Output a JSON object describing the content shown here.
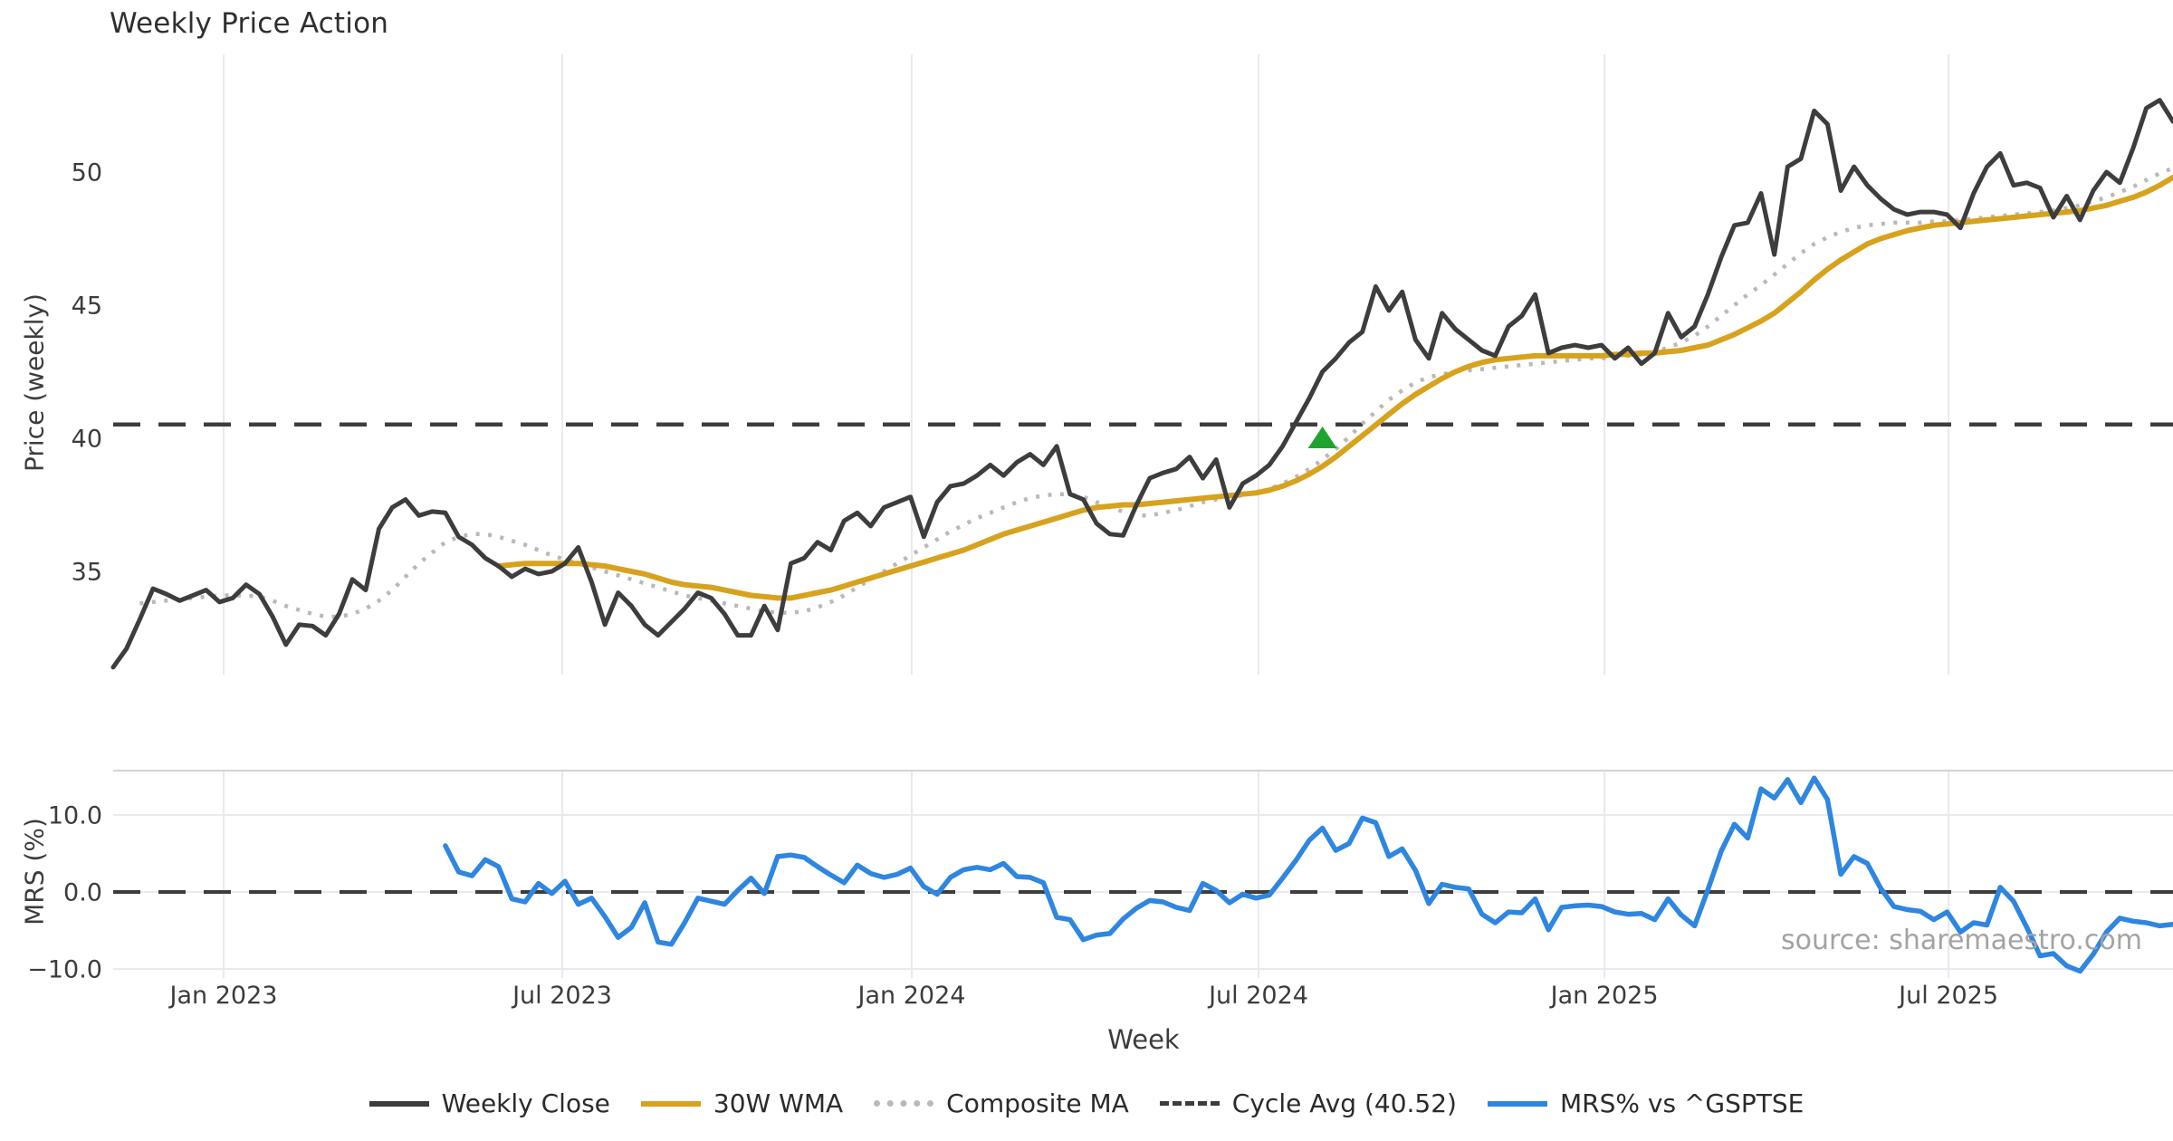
{
  "title": "Weekly Price Action",
  "xlabel": "Week",
  "source": "source: sharemaestro.com",
  "colors": {
    "weekly_close": "#3d3d3d",
    "wma30": "#d7a21d",
    "composite": "#b9b9b9",
    "cycle_avg": "#3d3d3d",
    "mrs": "#2e86e0",
    "marker_green": "#1fa32f",
    "grid": "#e9e9f1",
    "spine": "#d4d4d4"
  },
  "legend": [
    {
      "label": "Weekly Close",
      "style": "solid",
      "color": "#3d3d3d"
    },
    {
      "label": "30W WMA",
      "style": "solid",
      "color": "#d7a21d"
    },
    {
      "label": "Composite MA",
      "style": "dotted",
      "color": "#b9b9b9"
    },
    {
      "label": "Cycle Avg (40.52)",
      "style": "dashed",
      "color": "#3d3d3d"
    },
    {
      "label": "MRS% vs ^GSPTSE",
      "style": "solid",
      "color": "#2e86e0"
    }
  ],
  "chart_data": {
    "type": "line",
    "x_mode": "weekly",
    "weeks_total": 156,
    "xticks": [
      {
        "label": "Jan 2023",
        "week": 8.31
      },
      {
        "label": "Jul 2023",
        "week": 33.79
      },
      {
        "label": "Jan 2024",
        "week": 60.09
      },
      {
        "label": "Jul 2024",
        "week": 86.19
      },
      {
        "label": "Jan 2025",
        "week": 112.22
      },
      {
        "label": "Jul 2025",
        "week": 138.11
      }
    ],
    "price_panel": {
      "ylabel": "Price (weekly)",
      "ylim": [
        31.1,
        54.4
      ],
      "yticks": [
        {
          "label": "35",
          "value": 35
        },
        {
          "label": "40",
          "value": 40
        },
        {
          "label": "45",
          "value": 45
        },
        {
          "label": "50",
          "value": 50
        }
      ],
      "cycle_avg": 40.52,
      "signal_marker": {
        "week": 91,
        "price": 40.0,
        "shape": "triangle-up",
        "color": "#1fa32f"
      }
    },
    "mrs_panel": {
      "ylabel": "MRS (%)",
      "ylim": [
        -11.2,
        15.8
      ],
      "yticks": [
        {
          "label": "10.0",
          "value": 10
        },
        {
          "label": "0.0",
          "value": 0
        },
        {
          "label": "−10.0",
          "value": -10
        }
      ],
      "zero_line": 0
    },
    "series": [
      {
        "name": "Weekly Close",
        "start_week": 0,
        "values": [
          31.4,
          32.1,
          33.2,
          34.35,
          34.15,
          33.9,
          34.1,
          34.3,
          33.85,
          34.0,
          34.5,
          34.15,
          33.3,
          32.25,
          33.0,
          32.95,
          32.6,
          33.4,
          34.7,
          34.3,
          36.6,
          37.4,
          37.7,
          37.1,
          37.25,
          37.2,
          36.3,
          36.0,
          35.5,
          35.2,
          34.8,
          35.1,
          34.9,
          35.0,
          35.3,
          35.9,
          34.6,
          33.0,
          34.2,
          33.7,
          33.0,
          32.6,
          33.1,
          33.6,
          34.2,
          34.0,
          33.4,
          32.6,
          32.6,
          33.7,
          32.8,
          35.3,
          35.5,
          36.1,
          35.8,
          36.9,
          37.2,
          36.7,
          37.4,
          37.6,
          37.8,
          36.3,
          37.6,
          38.2,
          38.3,
          38.6,
          39.0,
          38.6,
          39.1,
          39.4,
          39.0,
          39.7,
          37.9,
          37.7,
          36.8,
          36.4,
          36.35,
          37.5,
          38.5,
          38.7,
          38.85,
          39.3,
          38.5,
          39.2,
          37.4,
          38.3,
          38.6,
          39.0,
          39.7,
          40.6,
          41.5,
          42.5,
          43.0,
          43.6,
          44.0,
          45.7,
          44.8,
          45.5,
          43.7,
          43.0,
          44.7,
          44.1,
          43.7,
          43.3,
          43.1,
          44.2,
          44.6,
          45.4,
          43.2,
          43.4,
          43.5,
          43.4,
          43.5,
          43.0,
          43.4,
          42.8,
          43.2,
          44.7,
          43.8,
          44.2,
          45.4,
          46.8,
          48.0,
          48.1,
          49.2,
          46.9,
          50.2,
          50.5,
          52.3,
          51.8,
          49.3,
          50.2,
          49.5,
          49.0,
          48.6,
          48.4,
          48.5,
          48.5,
          48.4,
          47.9,
          49.2,
          50.2,
          50.7,
          49.5,
          49.6,
          49.4,
          48.3,
          49.1,
          48.2,
          49.3,
          50.0,
          49.6,
          50.9,
          52.4,
          52.7,
          51.9
        ]
      },
      {
        "name": "30W WMA",
        "start_week": 29,
        "values": [
          35.2,
          35.25,
          35.3,
          35.3,
          35.3,
          35.3,
          35.3,
          35.25,
          35.2,
          35.1,
          35.0,
          34.9,
          34.75,
          34.6,
          34.5,
          34.45,
          34.4,
          34.3,
          34.2,
          34.1,
          34.05,
          34.0,
          34.0,
          34.1,
          34.2,
          34.3,
          34.45,
          34.6,
          34.75,
          34.9,
          35.05,
          35.2,
          35.35,
          35.5,
          35.65,
          35.8,
          36.0,
          36.2,
          36.4,
          36.55,
          36.7,
          36.85,
          37.0,
          37.15,
          37.3,
          37.4,
          37.45,
          37.5,
          37.5,
          37.55,
          37.6,
          37.65,
          37.7,
          37.75,
          37.8,
          37.85,
          37.9,
          37.95,
          38.05,
          38.2,
          38.4,
          38.65,
          38.95,
          39.3,
          39.7,
          40.1,
          40.5,
          40.9,
          41.3,
          41.65,
          41.95,
          42.25,
          42.5,
          42.7,
          42.85,
          42.95,
          43.0,
          43.05,
          43.1,
          43.1,
          43.1,
          43.1,
          43.1,
          43.1,
          43.15,
          43.15,
          43.2,
          43.2,
          43.25,
          43.3,
          43.4,
          43.5,
          43.7,
          43.9,
          44.15,
          44.4,
          44.7,
          45.1,
          45.5,
          45.95,
          46.35,
          46.7,
          47.0,
          47.3,
          47.5,
          47.65,
          47.8,
          47.9,
          48.0,
          48.05,
          48.1,
          48.15,
          48.2,
          48.25,
          48.3,
          48.35,
          48.4,
          48.45,
          48.5,
          48.55,
          48.65,
          48.75,
          48.9,
          49.05,
          49.25,
          49.5,
          49.8
        ]
      },
      {
        "name": "Composite MA",
        "start_week": 2,
        "values": [
          33.8,
          33.85,
          33.9,
          33.95,
          34.0,
          34.05,
          34.1,
          34.1,
          34.1,
          34.05,
          33.9,
          33.7,
          33.55,
          33.4,
          33.3,
          33.3,
          33.4,
          33.6,
          33.9,
          34.3,
          34.8,
          35.3,
          35.7,
          36.1,
          36.3,
          36.4,
          36.4,
          36.3,
          36.15,
          36.0,
          35.8,
          35.6,
          35.45,
          35.3,
          35.15,
          35.0,
          34.85,
          34.7,
          34.55,
          34.4,
          34.25,
          34.1,
          34.0,
          33.9,
          33.8,
          33.7,
          33.6,
          33.5,
          33.45,
          33.45,
          33.5,
          33.65,
          33.85,
          34.1,
          34.4,
          34.7,
          35.0,
          35.3,
          35.6,
          35.9,
          36.2,
          36.5,
          36.75,
          37.0,
          37.2,
          37.4,
          37.6,
          37.75,
          37.85,
          37.9,
          37.9,
          37.8,
          37.6,
          37.4,
          37.25,
          37.1,
          37.1,
          37.2,
          37.3,
          37.45,
          37.6,
          37.7,
          37.8,
          37.85,
          37.95,
          38.1,
          38.3,
          38.55,
          38.85,
          39.2,
          39.6,
          40.05,
          40.55,
          41.0,
          41.45,
          41.8,
          42.1,
          42.3,
          42.4,
          42.5,
          42.55,
          42.6,
          42.65,
          42.7,
          42.75,
          42.8,
          42.85,
          42.9,
          42.95,
          43.0,
          43.0,
          43.05,
          43.1,
          43.15,
          43.25,
          43.4,
          43.6,
          43.85,
          44.2,
          44.6,
          45.0,
          45.4,
          45.75,
          46.15,
          46.55,
          46.95,
          47.3,
          47.55,
          47.75,
          47.9,
          48.0,
          48.05,
          48.1,
          48.1,
          48.1,
          48.15,
          48.15,
          48.2,
          48.25,
          48.3,
          48.35,
          48.4,
          48.45,
          48.5,
          48.55,
          48.65,
          48.75,
          48.9,
          49.05,
          49.25,
          49.45,
          49.7,
          49.95,
          50.15
        ]
      },
      {
        "name": "MRS% vs ^GSPTSE",
        "start_week": 25,
        "values": [
          6.0,
          2.6,
          2.1,
          4.2,
          3.3,
          -0.9,
          -1.3,
          1.1,
          -0.2,
          1.4,
          -1.6,
          -0.8,
          -3.2,
          -5.9,
          -4.6,
          -1.4,
          -6.5,
          -6.8,
          -4.0,
          -0.8,
          -1.2,
          -1.6,
          0.2,
          1.8,
          -0.2,
          4.6,
          4.8,
          4.5,
          3.3,
          2.2,
          1.2,
          3.5,
          2.4,
          1.9,
          2.3,
          3.1,
          0.7,
          -0.3,
          1.9,
          2.9,
          3.2,
          2.9,
          3.7,
          2.0,
          1.9,
          1.2,
          -3.3,
          -3.6,
          -6.2,
          -5.6,
          -5.4,
          -3.5,
          -2.1,
          -1.1,
          -1.3,
          -2.0,
          -2.4,
          1.1,
          0.2,
          -1.4,
          -0.3,
          -0.8,
          -0.4,
          1.8,
          4.1,
          6.7,
          8.3,
          5.4,
          6.3,
          9.6,
          9.0,
          4.6,
          5.6,
          2.8,
          -1.5,
          1.0,
          0.6,
          0.4,
          -2.9,
          -4.0,
          -2.6,
          -2.7,
          -0.9,
          -4.9,
          -2.0,
          -1.8,
          -1.7,
          -1.9,
          -2.6,
          -2.9,
          -2.8,
          -3.6,
          -0.9,
          -3.0,
          -4.4,
          0.3,
          5.3,
          8.8,
          7.0,
          13.4,
          12.2,
          14.6,
          11.6,
          14.8,
          12.0,
          2.3,
          4.6,
          3.7,
          0.5,
          -1.9,
          -2.3,
          -2.5,
          -3.6,
          -2.6,
          -5.2,
          -4.0,
          -4.3,
          0.6,
          -1.2,
          -4.6,
          -8.3,
          -8.0,
          -9.6,
          -10.3,
          -8.1,
          -5.2,
          -3.4,
          -3.8,
          -4.0,
          -4.4,
          -4.2
        ]
      }
    ]
  }
}
